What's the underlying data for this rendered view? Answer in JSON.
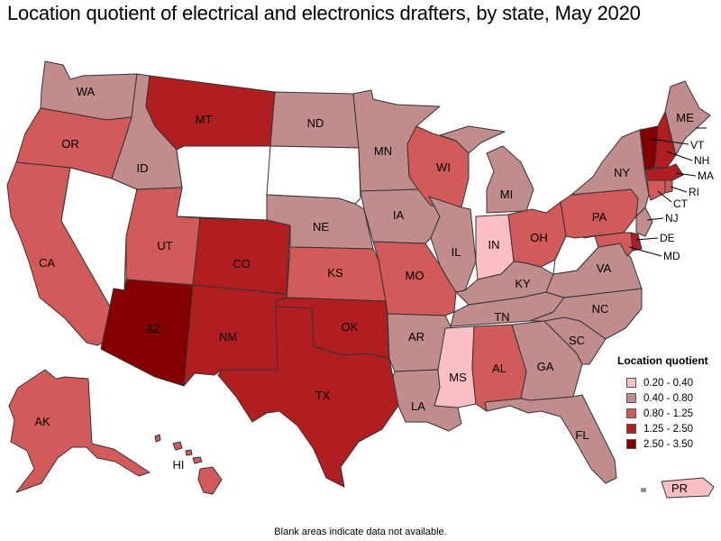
{
  "title": "Location quotient of electrical and electronics drafters, by state, May 2020",
  "note": "Blank areas indicate data not available.",
  "legend": {
    "title": "Location quotient",
    "items": [
      {
        "label": "0.20 - 0.40",
        "color": "#f9bfc3"
      },
      {
        "label": "0.40 - 0.80",
        "color": "#c08c8c"
      },
      {
        "label": "0.80 - 1.25",
        "color": "#d35a5a"
      },
      {
        "label": "1.25 - 2.50",
        "color": "#b01e22"
      },
      {
        "label": "2.50 - 3.50",
        "color": "#850000"
      }
    ]
  },
  "states": {
    "WA": {
      "label": "WA",
      "color": "#c08c8c"
    },
    "OR": {
      "label": "OR",
      "color": "#d35a5a"
    },
    "CA": {
      "label": "CA",
      "color": "#d35a5a"
    },
    "NV": {
      "label": "",
      "color": "#ffffff"
    },
    "ID": {
      "label": "ID",
      "color": "#c08c8c"
    },
    "MT": {
      "label": "MT",
      "color": "#b01e22"
    },
    "WY": {
      "label": "",
      "color": "#ffffff"
    },
    "UT": {
      "label": "UT",
      "color": "#d35a5a"
    },
    "AZ": {
      "label": "AZ",
      "color": "#850000"
    },
    "CO": {
      "label": "CO",
      "color": "#b01e22"
    },
    "NM": {
      "label": "NM",
      "color": "#b01e22"
    },
    "ND": {
      "label": "ND",
      "color": "#c08c8c"
    },
    "SD": {
      "label": "",
      "color": "#ffffff"
    },
    "NE": {
      "label": "NE",
      "color": "#c08c8c"
    },
    "KS": {
      "label": "KS",
      "color": "#d35a5a"
    },
    "OK": {
      "label": "OK",
      "color": "#b01e22"
    },
    "TX": {
      "label": "TX",
      "color": "#b01e22"
    },
    "MN": {
      "label": "MN",
      "color": "#c08c8c"
    },
    "IA": {
      "label": "IA",
      "color": "#c08c8c"
    },
    "MO": {
      "label": "MO",
      "color": "#d35a5a"
    },
    "AR": {
      "label": "AR",
      "color": "#c08c8c"
    },
    "LA": {
      "label": "LA",
      "color": "#c08c8c"
    },
    "WI": {
      "label": "WI",
      "color": "#d35a5a"
    },
    "IL": {
      "label": "IL",
      "color": "#c08c8c"
    },
    "MI": {
      "label": "MI",
      "color": "#c08c8c"
    },
    "IN": {
      "label": "IN",
      "color": "#f9bfc3"
    },
    "OH": {
      "label": "OH",
      "color": "#d35a5a"
    },
    "KY": {
      "label": "KY",
      "color": "#c08c8c"
    },
    "TN": {
      "label": "TN",
      "color": "#c08c8c"
    },
    "MS": {
      "label": "MS",
      "color": "#f9bfc3"
    },
    "AL": {
      "label": "AL",
      "color": "#d35a5a"
    },
    "GA": {
      "label": "GA",
      "color": "#c08c8c"
    },
    "FL": {
      "label": "FL",
      "color": "#c08c8c"
    },
    "SC": {
      "label": "SC",
      "color": "#c08c8c"
    },
    "NC": {
      "label": "NC",
      "color": "#c08c8c"
    },
    "VA": {
      "label": "VA",
      "color": "#c08c8c"
    },
    "WV": {
      "label": "",
      "color": "#ffffff"
    },
    "PA": {
      "label": "PA",
      "color": "#d35a5a"
    },
    "NY": {
      "label": "NY",
      "color": "#c08c8c"
    },
    "ME": {
      "label": "ME",
      "color": "#c08c8c"
    },
    "VT": {
      "label": "VT",
      "color": "#850000"
    },
    "NH": {
      "label": "NH",
      "color": "#b01e22"
    },
    "MA": {
      "label": "MA",
      "color": "#b01e22"
    },
    "RI": {
      "label": "RI",
      "color": "#d35a5a"
    },
    "CT": {
      "label": "CT",
      "color": "#d35a5a"
    },
    "NJ": {
      "label": "NJ",
      "color": "#c08c8c"
    },
    "DE": {
      "label": "DE",
      "color": "#b01e22"
    },
    "MD": {
      "label": "MD",
      "color": "#d35a5a"
    },
    "AK": {
      "label": "AK",
      "color": "#d35a5a"
    },
    "HI": {
      "label": "HI",
      "color": "#d35a5a"
    },
    "PR": {
      "label": "PR",
      "color": "#f9bfc3"
    }
  }
}
